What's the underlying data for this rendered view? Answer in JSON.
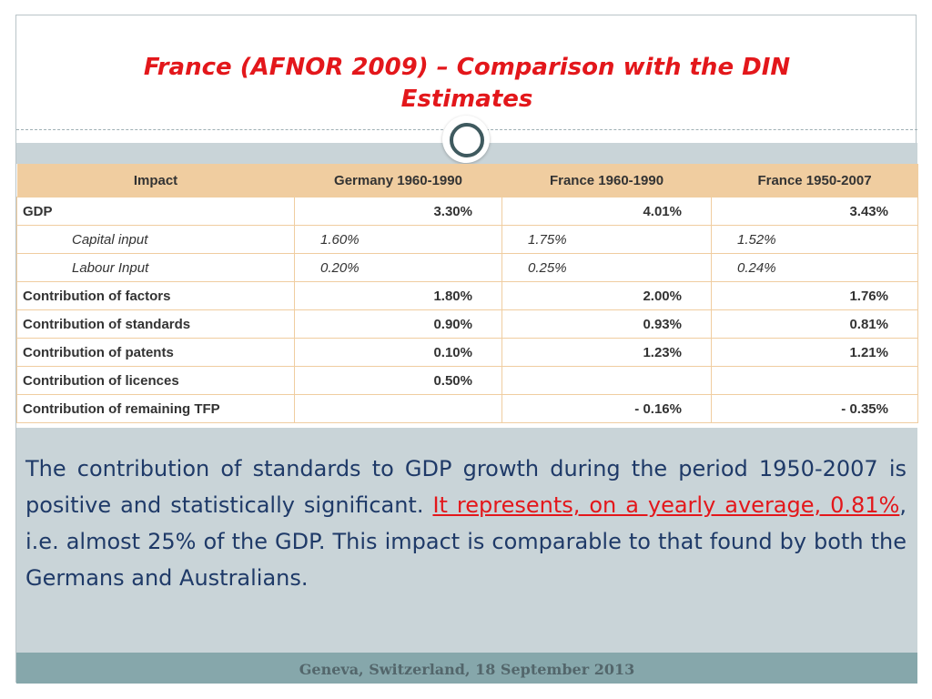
{
  "slide": {
    "title_line1": "France (AFNOR 2009) – Comparison with the DIN",
    "title_line2": "Estimates",
    "table": {
      "headers": [
        "Impact",
        "Germany 1960-1990",
        "France 1960-1990",
        "France 1950-2007"
      ],
      "rows": [
        {
          "label": "GDP",
          "cells": [
            "3.30%",
            "4.01%",
            "3.43%"
          ]
        },
        {
          "label": "Capital input",
          "cells": [
            "1.60%",
            "1.75%",
            "1.52%"
          ]
        },
        {
          "label": "Labour Input",
          "cells": [
            "0.20%",
            "0.25%",
            "0.24%"
          ]
        },
        {
          "label": "Contribution of factors",
          "cells": [
            "1.80%",
            "2.00%",
            "1.76%"
          ]
        },
        {
          "label": "Contribution of standards",
          "cells": [
            "0.90%",
            "0.93%",
            "0.81%"
          ]
        },
        {
          "label": "Contribution of patents",
          "cells": [
            "0.10%",
            "1.23%",
            "1.21%"
          ]
        },
        {
          "label": "Contribution of licences",
          "cells": [
            "0.50%",
            "",
            ""
          ]
        },
        {
          "label": "Contribution of remaining TFP",
          "cells": [
            "",
            "- 0.16%",
            "- 0.35%"
          ]
        }
      ]
    },
    "paragraph": {
      "part1": "The contribution of standards to GDP growth during the period 1950-2007 is positive and statistically significant. ",
      "highlight": "It represents, on a yearly average, 0.81%",
      "part2": ", i.e. almost 25% of the GDP. This impact is comparable to that found by both the Germans and Australians."
    },
    "footer": "Geneva, Switzerland, 18 September 2013",
    "colors": {
      "title": "#e3171b",
      "body": "#1f3a68",
      "table_header": "#f0cda0",
      "footer_bar": "#86a7ab"
    }
  }
}
